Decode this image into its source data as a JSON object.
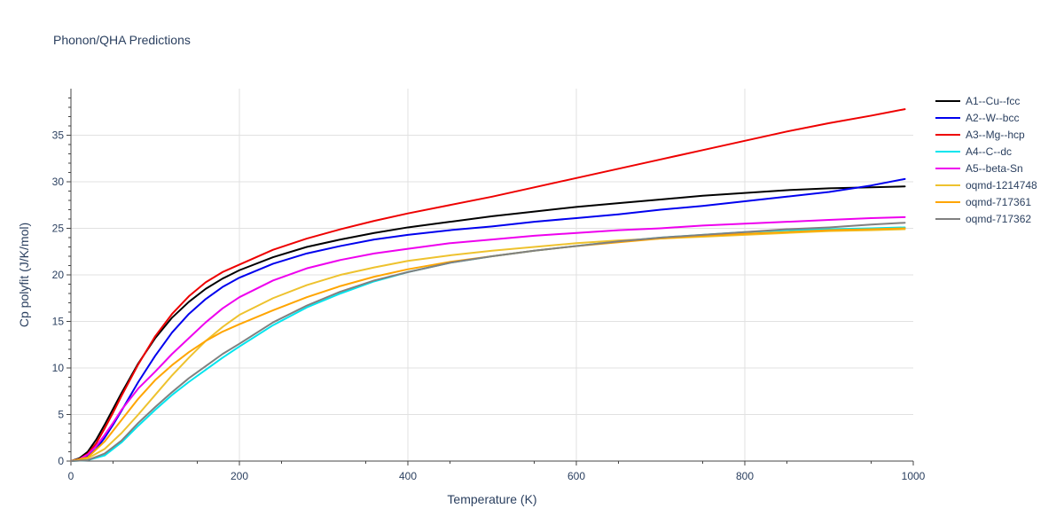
{
  "chart_data": {
    "type": "line",
    "title": "Phonon/QHA Predictions",
    "xlabel": "Temperature (K)",
    "ylabel": "Cp polyfit (J/K/mol)",
    "xlim": [
      0,
      1000
    ],
    "ylim": [
      0,
      40
    ],
    "x_ticks": [
      "0",
      "200",
      "400",
      "600",
      "800",
      "1000"
    ],
    "y_ticks": [
      "0",
      "5",
      "10",
      "15",
      "20",
      "25",
      "30",
      "35"
    ],
    "grid": true,
    "legend_position": "top-right",
    "series": [
      {
        "name": "A1--Cu--fcc",
        "color": "#000000",
        "x": [
          0,
          10,
          20,
          30,
          40,
          50,
          60,
          80,
          100,
          120,
          140,
          160,
          180,
          200,
          240,
          280,
          320,
          360,
          400,
          450,
          500,
          550,
          600,
          650,
          700,
          750,
          800,
          850,
          900,
          950,
          990
        ],
        "y": [
          0,
          0.3,
          1.0,
          2.3,
          3.9,
          5.6,
          7.3,
          10.5,
          13.2,
          15.4,
          17.1,
          18.5,
          19.6,
          20.5,
          21.9,
          23.0,
          23.8,
          24.5,
          25.1,
          25.7,
          26.3,
          26.8,
          27.3,
          27.7,
          28.1,
          28.5,
          28.8,
          29.1,
          29.3,
          29.4,
          29.5
        ]
      },
      {
        "name": "A2--W--bcc",
        "color": "#0000ee",
        "x": [
          0,
          10,
          20,
          30,
          40,
          50,
          60,
          80,
          100,
          120,
          140,
          160,
          180,
          200,
          240,
          280,
          320,
          360,
          400,
          450,
          500,
          550,
          600,
          650,
          700,
          750,
          800,
          850,
          900,
          950,
          990
        ],
        "y": [
          0,
          0.1,
          0.5,
          1.3,
          2.5,
          3.9,
          5.4,
          8.5,
          11.3,
          13.8,
          15.8,
          17.4,
          18.7,
          19.7,
          21.2,
          22.3,
          23.1,
          23.8,
          24.3,
          24.8,
          25.2,
          25.7,
          26.1,
          26.5,
          27.0,
          27.4,
          27.9,
          28.4,
          28.9,
          29.6,
          30.3
        ]
      },
      {
        "name": "A3--Mg--hcp",
        "color": "#ee0000",
        "x": [
          0,
          10,
          20,
          30,
          40,
          50,
          60,
          80,
          100,
          120,
          140,
          160,
          180,
          200,
          240,
          280,
          320,
          360,
          400,
          450,
          500,
          550,
          600,
          650,
          700,
          750,
          800,
          850,
          900,
          950,
          990
        ],
        "y": [
          0,
          0.2,
          0.8,
          1.9,
          3.5,
          5.2,
          7.0,
          10.4,
          13.4,
          15.8,
          17.7,
          19.2,
          20.3,
          21.1,
          22.7,
          23.9,
          24.9,
          25.8,
          26.6,
          27.5,
          28.4,
          29.4,
          30.4,
          31.4,
          32.4,
          33.4,
          34.4,
          35.4,
          36.3,
          37.1,
          37.8
        ]
      },
      {
        "name": "A4--C--dc",
        "color": "#00e5ee",
        "x": [
          0,
          20,
          40,
          60,
          80,
          100,
          120,
          140,
          160,
          180,
          200,
          240,
          280,
          320,
          360,
          400,
          450,
          500,
          550,
          600,
          650,
          700,
          750,
          800,
          850,
          900,
          950,
          990
        ],
        "y": [
          0,
          0.1,
          0.6,
          2.0,
          3.8,
          5.5,
          7.1,
          8.5,
          9.8,
          11.1,
          12.3,
          14.6,
          16.5,
          18.0,
          19.3,
          20.3,
          21.3,
          22.0,
          22.6,
          23.1,
          23.6,
          24.0,
          24.3,
          24.6,
          24.8,
          24.9,
          25.0,
          25.1
        ]
      },
      {
        "name": "A5--beta-Sn",
        "color": "#ee00ee",
        "x": [
          0,
          10,
          20,
          30,
          40,
          50,
          60,
          80,
          100,
          120,
          140,
          160,
          180,
          200,
          240,
          280,
          320,
          360,
          400,
          450,
          500,
          550,
          600,
          650,
          700,
          750,
          800,
          850,
          900,
          950,
          990
        ],
        "y": [
          0,
          0.2,
          0.7,
          1.6,
          2.8,
          4.1,
          5.5,
          7.8,
          9.6,
          11.5,
          13.2,
          14.9,
          16.4,
          17.6,
          19.4,
          20.7,
          21.6,
          22.3,
          22.8,
          23.4,
          23.8,
          24.2,
          24.5,
          24.8,
          25.0,
          25.3,
          25.5,
          25.7,
          25.9,
          26.1,
          26.2
        ]
      },
      {
        "name": "oqmd-1214748",
        "color": "#eec22e",
        "x": [
          0,
          20,
          40,
          60,
          80,
          100,
          120,
          140,
          160,
          180,
          200,
          240,
          280,
          320,
          360,
          400,
          450,
          500,
          550,
          600,
          650,
          700,
          750,
          800,
          850,
          900,
          950,
          990
        ],
        "y": [
          0,
          0.3,
          1.3,
          3.0,
          5.0,
          7.1,
          9.2,
          11.1,
          12.9,
          14.4,
          15.7,
          17.5,
          18.9,
          20.0,
          20.8,
          21.5,
          22.1,
          22.6,
          23.0,
          23.4,
          23.7,
          23.9,
          24.1,
          24.3,
          24.5,
          24.7,
          24.8,
          24.9
        ]
      },
      {
        "name": "oqmd-717361",
        "color": "#ffa500",
        "x": [
          0,
          20,
          40,
          60,
          80,
          100,
          120,
          140,
          160,
          180,
          200,
          240,
          280,
          320,
          360,
          400,
          450,
          500,
          550,
          600,
          650,
          700,
          750,
          800,
          850,
          900,
          950,
          990
        ],
        "y": [
          0,
          0.4,
          2.1,
          4.4,
          6.7,
          8.7,
          10.3,
          11.7,
          12.9,
          13.9,
          14.7,
          16.2,
          17.6,
          18.8,
          19.8,
          20.6,
          21.4,
          22.0,
          22.6,
          23.1,
          23.5,
          23.9,
          24.2,
          24.4,
          24.6,
          24.8,
          24.9,
          25.0
        ]
      },
      {
        "name": "oqmd-717362",
        "color": "#808080",
        "x": [
          0,
          20,
          40,
          60,
          80,
          100,
          120,
          140,
          160,
          180,
          200,
          240,
          280,
          320,
          360,
          400,
          450,
          500,
          550,
          600,
          650,
          700,
          750,
          800,
          850,
          900,
          950,
          990
        ],
        "y": [
          0,
          0.1,
          0.8,
          2.2,
          4.1,
          5.8,
          7.4,
          8.9,
          10.2,
          11.5,
          12.6,
          14.9,
          16.7,
          18.2,
          19.4,
          20.3,
          21.3,
          22.0,
          22.6,
          23.1,
          23.6,
          24.0,
          24.3,
          24.6,
          24.9,
          25.1,
          25.4,
          25.6
        ]
      }
    ]
  }
}
